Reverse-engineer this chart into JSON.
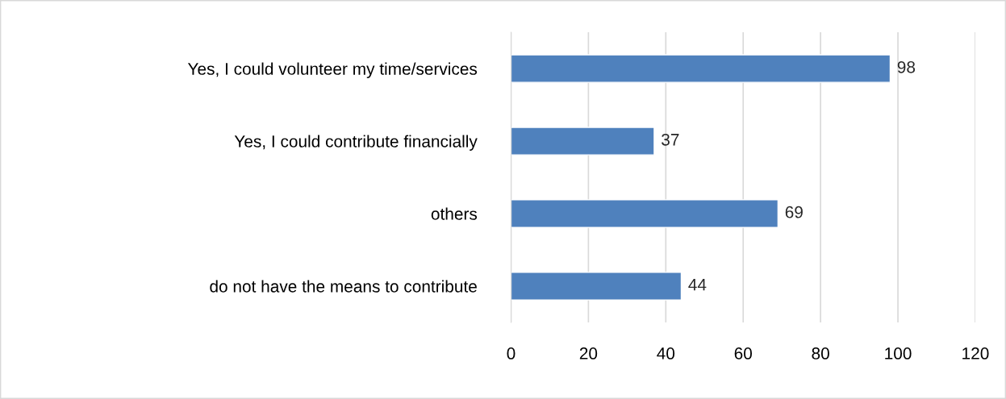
{
  "chart_data": {
    "type": "bar",
    "orientation": "horizontal",
    "categories": [
      "Yes, I could volunteer my time/services",
      "Yes, I could contribute financially",
      "others",
      "do not have the means to contribute"
    ],
    "values": [
      98,
      37,
      69,
      44
    ],
    "color": "#4f81bd",
    "xlim": [
      0,
      120
    ],
    "xticks": [
      0,
      20,
      40,
      60,
      80,
      100,
      120
    ],
    "grid": "x",
    "data_labels": true
  }
}
